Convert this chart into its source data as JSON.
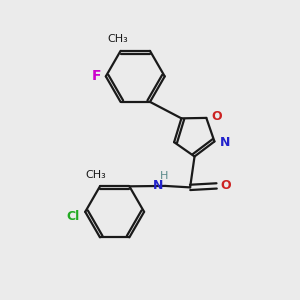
{
  "bg_color": "#ebebeb",
  "bond_color": "#1a1a1a",
  "bond_width": 1.6,
  "atom_colors": {
    "C": "#1a1a1a",
    "H": "#5a8a8a",
    "N": "#2222cc",
    "O": "#cc2222",
    "F": "#cc00cc",
    "Cl": "#22aa22"
  },
  "font_size": 9
}
